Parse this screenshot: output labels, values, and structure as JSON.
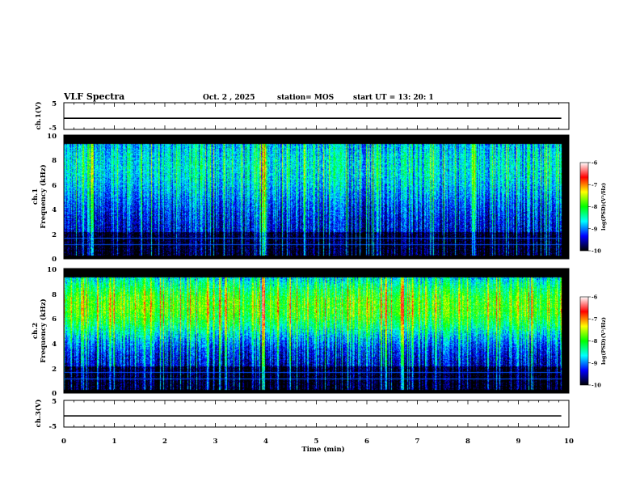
{
  "header": {
    "title": "VLF Spectra",
    "date": "Oct. 2  , 2025",
    "station": "station= MOS",
    "start": "start  UT  =   13: 20: 1"
  },
  "chart_data": {
    "type": "heatmap",
    "title": "VLF Spectra",
    "xlabel": "Time  (min)",
    "xlim": [
      0,
      10
    ],
    "x_ticks": [
      "0",
      "1",
      "2",
      "3",
      "4",
      "5",
      "6",
      "7",
      "8",
      "9",
      "10"
    ],
    "data_end_min": 9.85,
    "panels": {
      "ch1": {
        "ylabel": "ch.1(V)",
        "ylim": [
          -5,
          5
        ],
        "ticks": [
          "5",
          "-5"
        ],
        "level": -0.8
      },
      "ch3": {
        "ylabel": "ch.3(V)",
        "ylim": [
          -5,
          5
        ],
        "ticks": [
          "5",
          "-5"
        ],
        "level": -0.8
      },
      "spec1": {
        "ylabel_top": "ch.1",
        "ylabel": "Frequency  (kHz)",
        "ylim": [
          0,
          10
        ],
        "ticks": [
          "0",
          "2",
          "4",
          "6",
          "8",
          "10"
        ],
        "band_kHz": [
          0.3,
          9.3
        ],
        "dominant_level": "blue",
        "bright_times_min": [
          0.55,
          3.95,
          8.1
        ]
      },
      "spec2": {
        "ylabel_top": "ch.2",
        "ylabel": "Frequency  (kHz)",
        "ylim": [
          0,
          10
        ],
        "ticks": [
          "0",
          "2",
          "4",
          "6",
          "8",
          "10"
        ],
        "band_kHz": [
          0.3,
          9.3
        ],
        "peak_band_kHz": [
          5.0,
          8.0
        ],
        "dominant_level": "green-yellow",
        "bright_times_min": [
          3.2,
          3.95,
          6.7
        ]
      }
    },
    "colorbar": {
      "label": "log(PSD)(V²/Hz)",
      "range": [
        -10,
        -6
      ],
      "ticks": [
        "-6",
        "-7",
        "-8",
        "-9",
        "-10"
      ],
      "colors": [
        "#000000",
        "#0000ff",
        "#00ffff",
        "#00ff00",
        "#ffff00",
        "#ff0000",
        "#ffffff"
      ]
    }
  }
}
